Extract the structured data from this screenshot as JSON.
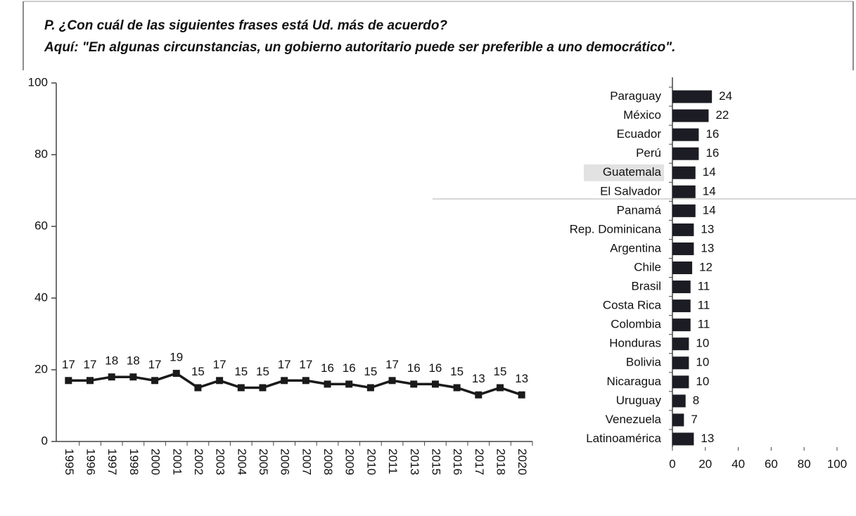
{
  "header": {
    "lines": [
      "P. ¿Con cuál de las siguientes frases está Ud. más de acuerdo?",
      "Aquí: \"En algunas circunstancias, un gobierno autoritario puede ser preferible a uno democrático\"."
    ]
  },
  "chart_data": [
    {
      "type": "line",
      "color": "#1a1a1a",
      "categories": [
        "1995",
        "1996",
        "1997",
        "1998",
        "2000",
        "2001",
        "2002",
        "2003",
        "2004",
        "2005",
        "2006",
        "2007",
        "2008",
        "2009",
        "2010",
        "2011",
        "2013",
        "2015",
        "2016",
        "2017",
        "2018",
        "2020"
      ],
      "values": [
        17,
        17,
        18,
        18,
        17,
        19,
        15,
        17,
        15,
        15,
        17,
        17,
        16,
        16,
        15,
        17,
        16,
        16,
        15,
        13,
        15,
        13
      ],
      "ylim": [
        0,
        100
      ],
      "yticks": [
        0,
        20,
        40,
        60,
        80,
        100
      ]
    },
    {
      "type": "hbar",
      "color": "#1c1c24",
      "highlight": "Guatemala",
      "categories": [
        "Paraguay",
        "México",
        "Ecuador",
        "Perú",
        "Guatemala",
        "El Salvador",
        "Panamá",
        "Rep. Dominicana",
        "Argentina",
        "Chile",
        "Brasil",
        "Costa Rica",
        "Colombia",
        "Honduras",
        "Bolivia",
        "Nicaragua",
        "Uruguay",
        "Venezuela",
        "Latinoamérica"
      ],
      "values": [
        24,
        22,
        16,
        16,
        14,
        14,
        14,
        13,
        13,
        12,
        11,
        11,
        11,
        10,
        10,
        10,
        8,
        7,
        13
      ],
      "xlim": [
        0,
        100
      ],
      "xticks": [
        0,
        20,
        40,
        60,
        80,
        100
      ]
    }
  ]
}
